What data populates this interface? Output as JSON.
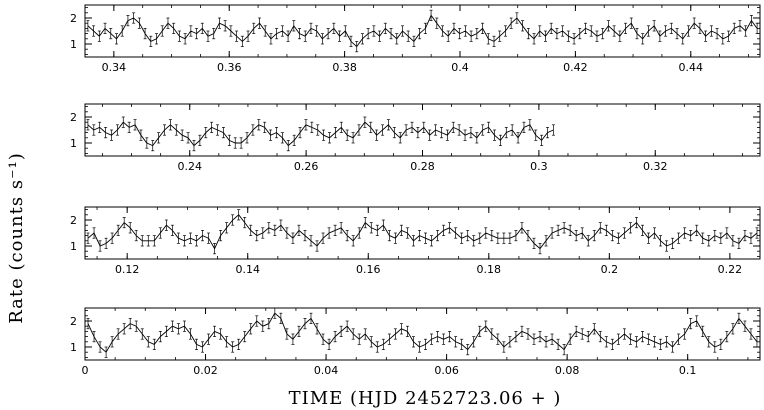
{
  "figure": {
    "ylabel": "Rate (counts s⁻¹)",
    "xlabel": "TIME (HJD 2452723.06 + )"
  },
  "chart_data": [
    {
      "type": "line",
      "panel": "panel-1",
      "xlim": [
        0.335,
        0.452
      ],
      "ylim": [
        0.5,
        2.5
      ],
      "xticks": [
        "0.34",
        "0.36",
        "0.38",
        "0.4",
        "0.42",
        "0.44"
      ],
      "xtick_values": [
        0.34,
        0.36,
        0.38,
        0.4,
        0.42,
        0.44
      ],
      "yticks": [
        "1",
        "2"
      ],
      "ytick_values": [
        1,
        2
      ],
      "x_start": 0.3355,
      "x_end": 0.4515,
      "values": [
        1.7,
        1.5,
        1.3,
        1.6,
        1.4,
        1.2,
        1.5,
        1.9,
        2.0,
        1.8,
        1.4,
        1.1,
        1.2,
        1.5,
        1.8,
        1.6,
        1.3,
        1.2,
        1.5,
        1.4,
        1.6,
        1.3,
        1.4,
        1.8,
        1.7,
        1.5,
        1.3,
        1.1,
        1.3,
        1.6,
        1.8,
        1.5,
        1.2,
        1.4,
        1.5,
        1.3,
        1.7,
        1.4,
        1.3,
        1.6,
        1.5,
        1.2,
        1.4,
        1.6,
        1.3,
        1.5,
        1.1,
        0.9,
        1.2,
        1.4,
        1.5,
        1.3,
        1.6,
        1.4,
        1.2,
        1.5,
        1.3,
        1.1,
        1.4,
        1.6,
        2.1,
        1.8,
        1.5,
        1.3,
        1.6,
        1.4,
        1.5,
        1.3,
        1.4,
        1.6,
        1.2,
        1.1,
        1.3,
        1.5,
        1.8,
        2.0,
        1.7,
        1.4,
        1.2,
        1.5,
        1.3,
        1.6,
        1.4,
        1.5,
        1.3,
        1.2,
        1.4,
        1.6,
        1.5,
        1.3,
        1.4,
        1.7,
        1.5,
        1.3,
        1.6,
        1.8,
        1.4,
        1.2,
        1.5,
        1.7,
        1.3,
        1.5,
        1.6,
        1.4,
        1.2,
        1.5,
        1.8,
        1.6,
        1.3,
        1.5,
        1.4,
        1.2,
        1.3,
        1.6,
        1.7,
        1.5,
        1.9,
        1.6
      ],
      "error": 0.2
    },
    {
      "type": "line",
      "panel": "panel-2",
      "xlim": [
        0.222,
        0.338
      ],
      "ylim": [
        0.5,
        2.5
      ],
      "xticks": [
        "0.24",
        "0.26",
        "0.28",
        "0.3",
        "0.32"
      ],
      "xtick_values": [
        0.24,
        0.26,
        0.28,
        0.3,
        0.32
      ],
      "yticks": [
        "1",
        "2"
      ],
      "ytick_values": [
        1,
        2
      ],
      "x_start": 0.2225,
      "x_end": 0.3025,
      "values": [
        1.7,
        1.5,
        1.6,
        1.4,
        1.3,
        1.5,
        1.8,
        1.6,
        1.7,
        1.3,
        1.0,
        0.9,
        1.2,
        1.5,
        1.7,
        1.5,
        1.3,
        1.2,
        0.9,
        1.1,
        1.4,
        1.6,
        1.5,
        1.4,
        1.1,
        1.0,
        1.0,
        1.2,
        1.5,
        1.7,
        1.6,
        1.3,
        1.4,
        1.2,
        0.9,
        1.1,
        1.4,
        1.7,
        1.6,
        1.5,
        1.3,
        1.2,
        1.4,
        1.6,
        1.3,
        1.2,
        1.5,
        1.8,
        1.6,
        1.3,
        1.5,
        1.7,
        1.4,
        1.2,
        1.5,
        1.6,
        1.4,
        1.6,
        1.3,
        1.5,
        1.4,
        1.3,
        1.6,
        1.5,
        1.3,
        1.4,
        1.2,
        1.5,
        1.6,
        1.3,
        1.1,
        1.4,
        1.5,
        1.2,
        1.6,
        1.7,
        1.3,
        1.1,
        1.4,
        1.5
      ],
      "error": 0.2
    },
    {
      "type": "line",
      "panel": "panel-3",
      "xlim": [
        0.113,
        0.225
      ],
      "ylim": [
        0.5,
        2.5
      ],
      "xticks": [
        "0.12",
        "0.14",
        "0.16",
        "0.18",
        "0.2",
        "0.22"
      ],
      "xtick_values": [
        0.12,
        0.14,
        0.16,
        0.18,
        0.2,
        0.22
      ],
      "yticks": [
        "1",
        "2"
      ],
      "ytick_values": [
        1,
        2
      ],
      "x_start": 0.1135,
      "x_end": 0.2245,
      "values": [
        1.3,
        1.5,
        1.0,
        1.1,
        1.3,
        1.6,
        1.9,
        1.7,
        1.4,
        1.2,
        1.2,
        1.2,
        1.5,
        1.8,
        1.6,
        1.3,
        1.2,
        1.3,
        1.2,
        1.4,
        1.3,
        0.9,
        1.4,
        1.7,
        2.0,
        2.2,
        1.9,
        1.6,
        1.4,
        1.5,
        1.7,
        1.6,
        1.8,
        1.5,
        1.3,
        1.6,
        1.4,
        1.2,
        1.0,
        1.3,
        1.5,
        1.6,
        1.7,
        1.4,
        1.2,
        1.5,
        1.9,
        1.7,
        1.6,
        1.8,
        1.4,
        1.3,
        1.6,
        1.5,
        1.2,
        1.4,
        1.3,
        1.2,
        1.4,
        1.6,
        1.7,
        1.5,
        1.3,
        1.4,
        1.2,
        1.3,
        1.5,
        1.4,
        1.3,
        1.3,
        1.3,
        1.4,
        1.7,
        1.4,
        1.1,
        0.9,
        1.2,
        1.5,
        1.6,
        1.7,
        1.6,
        1.4,
        1.5,
        1.2,
        1.4,
        1.7,
        1.6,
        1.4,
        1.3,
        1.5,
        1.7,
        1.9,
        1.6,
        1.3,
        1.5,
        1.2,
        1.0,
        1.1,
        1.3,
        1.5,
        1.4,
        1.6,
        1.3,
        1.2,
        1.4,
        1.3,
        1.5,
        1.2,
        1.1,
        1.4,
        1.3,
        1.5
      ],
      "error": 0.2
    },
    {
      "type": "line",
      "panel": "panel-4",
      "xlim": [
        0.0,
        0.112
      ],
      "ylim": [
        0.5,
        2.5
      ],
      "xticks": [
        "0",
        "0.02",
        "0.04",
        "0.06",
        "0.08",
        "0.1"
      ],
      "xtick_values": [
        0,
        0.02,
        0.04,
        0.06,
        0.08,
        0.1
      ],
      "yticks": [
        "1",
        "2"
      ],
      "ytick_values": [
        1,
        2
      ],
      "x_start": 0.0005,
      "x_end": 0.1115,
      "values": [
        1.9,
        1.4,
        1.0,
        0.8,
        1.2,
        1.5,
        1.7,
        1.9,
        1.8,
        1.5,
        1.2,
        1.1,
        1.4,
        1.6,
        1.8,
        1.7,
        1.8,
        1.5,
        1.1,
        1.0,
        1.3,
        1.6,
        1.5,
        1.2,
        1.0,
        1.1,
        1.4,
        1.7,
        2.0,
        1.8,
        1.9,
        2.3,
        2.1,
        1.5,
        1.3,
        1.6,
        1.9,
        2.1,
        1.7,
        1.3,
        1.1,
        1.4,
        1.6,
        1.8,
        1.5,
        1.3,
        1.5,
        1.2,
        1.0,
        1.1,
        1.3,
        1.5,
        1.7,
        1.6,
        1.2,
        1.0,
        1.1,
        1.3,
        1.4,
        1.3,
        1.4,
        1.2,
        1.1,
        0.9,
        1.2,
        1.6,
        1.8,
        1.5,
        1.3,
        1.0,
        1.2,
        1.4,
        1.6,
        1.5,
        1.3,
        1.4,
        1.2,
        1.3,
        1.1,
        0.9,
        1.3,
        1.6,
        1.5,
        1.4,
        1.7,
        1.4,
        1.2,
        1.1,
        1.3,
        1.5,
        1.3,
        1.2,
        1.4,
        1.3,
        1.2,
        1.1,
        1.2,
        1.0,
        1.3,
        1.5,
        1.9,
        2.0,
        1.6,
        1.2,
        1.0,
        1.1,
        1.4,
        1.7,
        2.1,
        1.8,
        1.5,
        1.2
      ],
      "error": 0.2
    }
  ]
}
